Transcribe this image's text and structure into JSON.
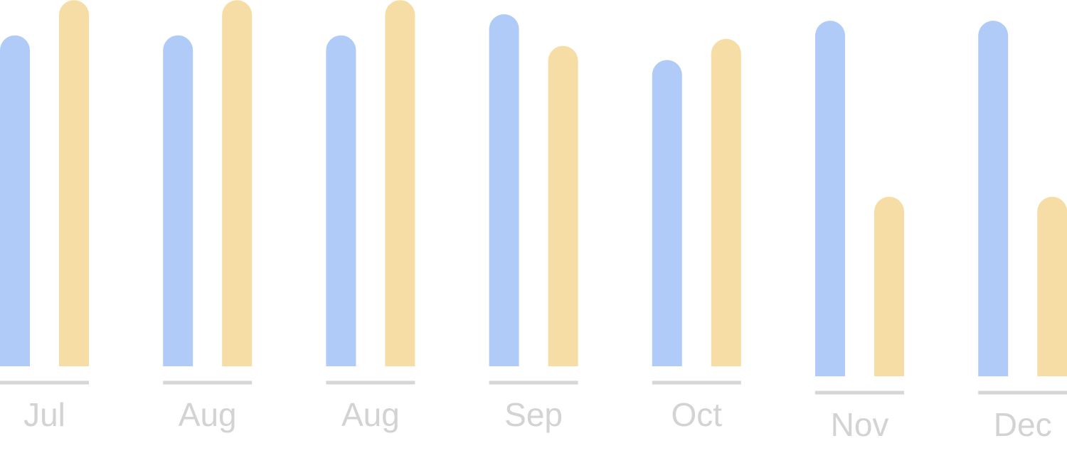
{
  "chart_data": {
    "type": "bar",
    "categories": [
      "Jul",
      "Aug",
      "Aug",
      "Sep",
      "Oct",
      "Nov",
      "Dec"
    ],
    "series": [
      {
        "values": [
          94,
          94,
          94,
          100,
          87,
          101,
          101
        ]
      },
      {
        "values": [
          104,
          104,
          104,
          91,
          93,
          51,
          51
        ]
      }
    ],
    "baseline_offsets": [
      0,
      0,
      0,
      0,
      0,
      3,
      3
    ],
    "ylim": [
      0,
      104
    ],
    "grid": false,
    "legend": "none"
  },
  "colors": {
    "series": [
      "#b0cbf8",
      "#f6dda6"
    ],
    "baseline": "#d6d6d6",
    "label": "#d3d3d3"
  }
}
